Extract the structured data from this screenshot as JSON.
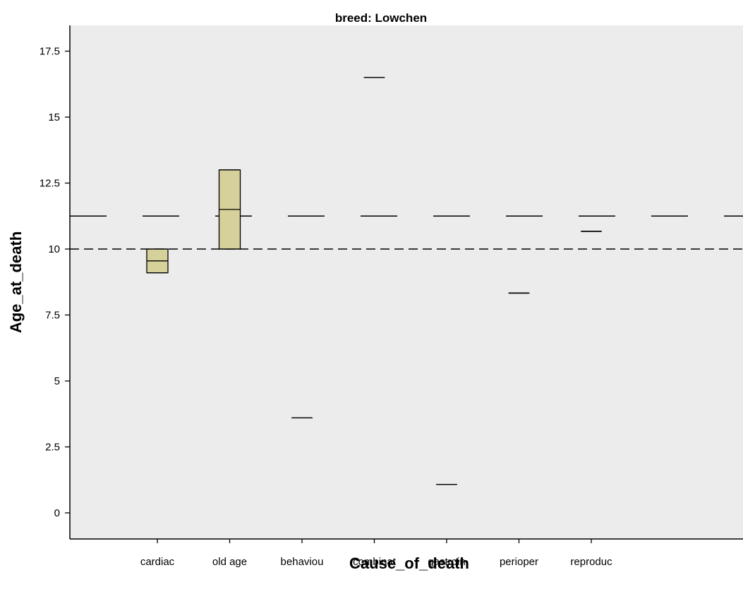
{
  "chart_data": {
    "type": "box",
    "title": "breed: Lowchen",
    "xlabel": "Cause_of_death",
    "ylabel": "Age_at_death",
    "categories": [
      "cardiac",
      "old age",
      "behaviou",
      "combinat",
      "gastroin",
      "perioper",
      "reproduc"
    ],
    "ylim": [
      -1,
      18.5
    ],
    "yticks": [
      0,
      2.5,
      5,
      7.5,
      10,
      12.5,
      15,
      17.5
    ],
    "ytick_labels": [
      "0",
      "2.5",
      "5",
      "7.5",
      "10",
      "12.5",
      "15",
      "17.5"
    ],
    "boxes": [
      {
        "category": "cardiac",
        "q1": 9.1,
        "median": 9.55,
        "q3": 10.0,
        "min": 9.1,
        "max": 10.0
      },
      {
        "category": "old age",
        "q1": 10.0,
        "median": 11.5,
        "q3": 13.0,
        "min": 10.0,
        "max": 13.0
      },
      {
        "category": "behaviou",
        "q1": 3.6,
        "median": 3.6,
        "q3": 3.6,
        "min": 3.6,
        "max": 3.6
      },
      {
        "category": "combinat",
        "q1": 16.5,
        "median": 16.5,
        "q3": 16.5,
        "min": 16.5,
        "max": 16.5
      },
      {
        "category": "gastroin",
        "q1": 1.08,
        "median": 1.08,
        "q3": 1.08,
        "min": 1.08,
        "max": 1.08
      },
      {
        "category": "perioper",
        "q1": 8.33,
        "median": 8.33,
        "q3": 8.33,
        "min": 8.33,
        "max": 8.33
      },
      {
        "category": "reproduc",
        "q1": 10.67,
        "median": 10.67,
        "q3": 10.67,
        "min": 10.67,
        "max": 10.67
      }
    ],
    "reference_lines": [
      {
        "y": 11.25,
        "style": "long-dash"
      },
      {
        "y": 10.0,
        "style": "short-dash"
      }
    ],
    "grid": false,
    "legend": "none",
    "colors": {
      "plot_bg": "#ececec",
      "box_fill": "#d6d09a",
      "stroke": "#000000"
    }
  }
}
